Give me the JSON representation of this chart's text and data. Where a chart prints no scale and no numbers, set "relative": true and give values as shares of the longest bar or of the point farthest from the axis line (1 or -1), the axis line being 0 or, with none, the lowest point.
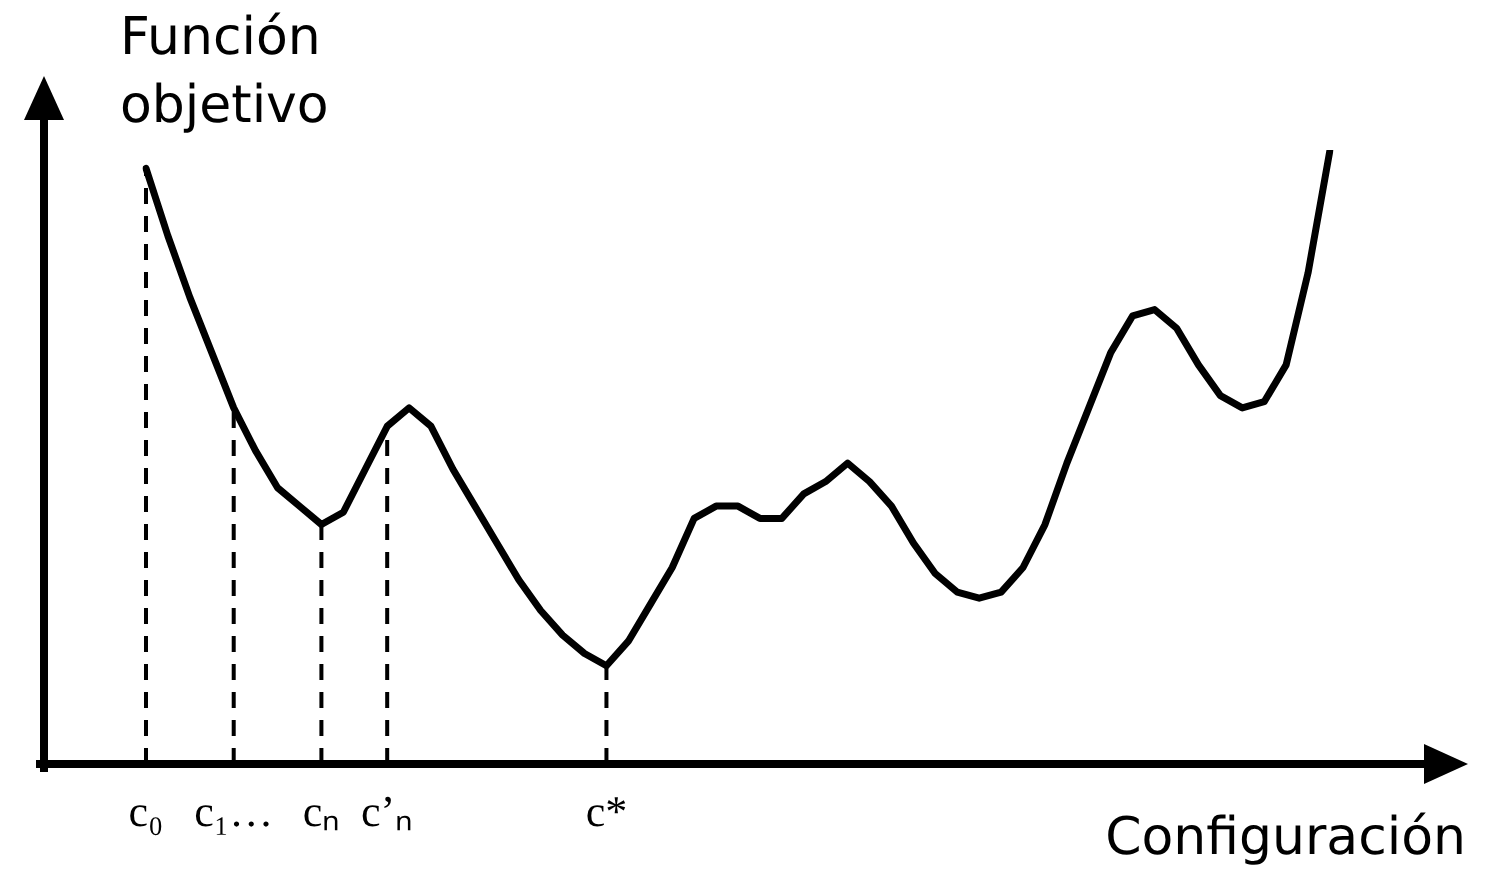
{
  "chart_data": {
    "type": "line",
    "relative": true,
    "xlabel": "Configuración",
    "ylabel": "Función\nobjetivo",
    "marker": "none",
    "line_style": "solid",
    "categories": [
      "c₀",
      null,
      null,
      null,
      "c₁…",
      null,
      null,
      null,
      "cₙ",
      null,
      null,
      "c’ₙ",
      null,
      null,
      null,
      null,
      null,
      null,
      null,
      null,
      null,
      "c*",
      null,
      null,
      null,
      null,
      null,
      null,
      null,
      null,
      null,
      null,
      null,
      null,
      null,
      null,
      null,
      null,
      null,
      null,
      null,
      null,
      null,
      null,
      null,
      null,
      null,
      null,
      null,
      null,
      null,
      null,
      null,
      null,
      null
    ],
    "series": [
      {
        "color": "#000000",
        "values": [
          0.97,
          0.86,
          0.76,
          0.67,
          0.58,
          0.51,
          0.45,
          0.42,
          0.39,
          0.41,
          0.48,
          0.55,
          0.58,
          0.55,
          0.48,
          0.42,
          0.36,
          0.3,
          0.25,
          0.21,
          0.18,
          0.16,
          0.2,
          0.26,
          0.32,
          0.4,
          0.42,
          0.42,
          0.4,
          0.4,
          0.44,
          0.46,
          0.49,
          0.46,
          0.42,
          0.36,
          0.31,
          0.28,
          0.27,
          0.28,
          0.32,
          0.39,
          0.49,
          0.58,
          0.67,
          0.73,
          0.74,
          0.71,
          0.65,
          0.6,
          0.58,
          0.59,
          0.65,
          0.8,
          1
        ]
      }
    ],
    "ref_lines": [
      {
        "axis": "x",
        "value": "c₀",
        "color": "#000000",
        "line_style": "dashed"
      },
      {
        "axis": "x",
        "value": "c₁…",
        "color": "#000000",
        "line_style": "dashed"
      },
      {
        "axis": "x",
        "value": "cₙ",
        "color": "#000000",
        "line_style": "dashed"
      },
      {
        "axis": "x",
        "value": "c’ₙ",
        "color": "#000000",
        "line_style": "dashed"
      },
      {
        "axis": "x",
        "value": "c*",
        "color": "#000000",
        "line_style": "dashed"
      }
    ]
  }
}
